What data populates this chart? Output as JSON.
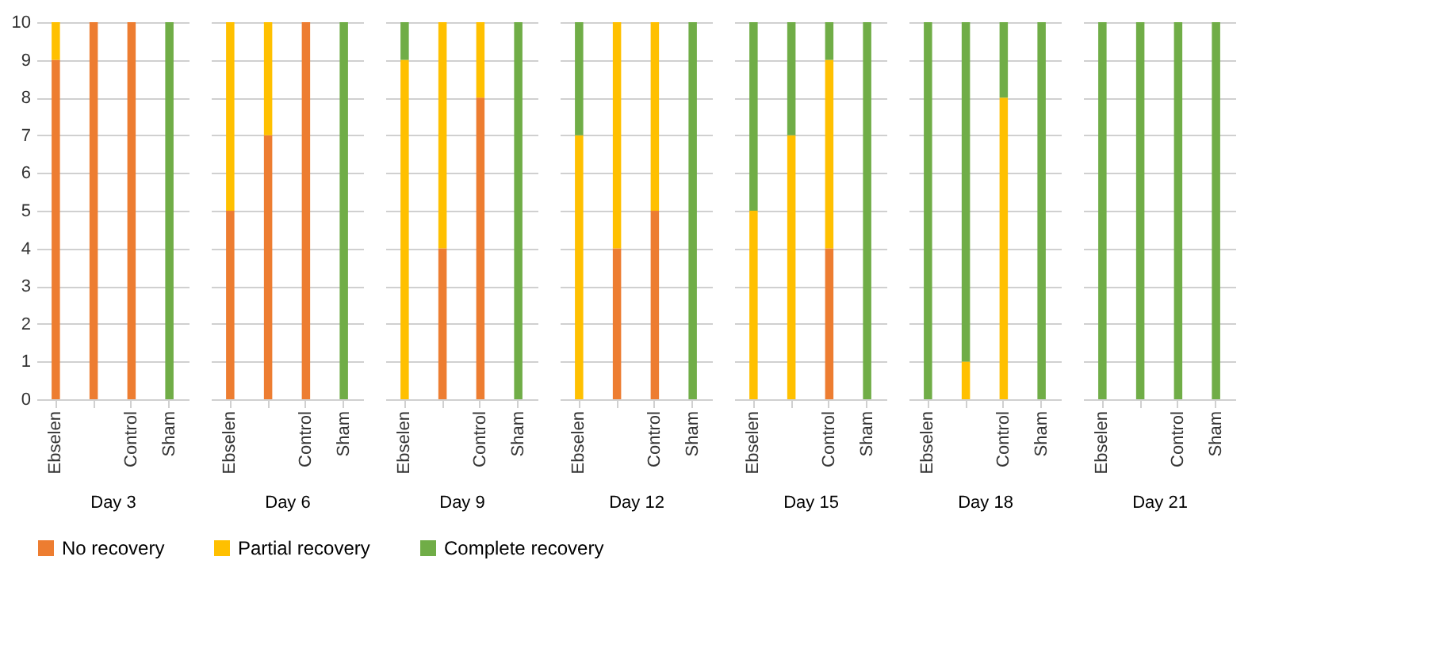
{
  "chart_data": [
    {
      "type": "bar",
      "stacked": true,
      "xlabel": "Day 3",
      "categories": [
        "Ebselen",
        null,
        "Control",
        "Sham"
      ],
      "ylim": [
        0,
        10
      ],
      "yticks": [
        0,
        1,
        2,
        3,
        4,
        5,
        6,
        7,
        8,
        9,
        10
      ],
      "grid": "y",
      "legend": "bottom",
      "series": [
        {
          "name": "No recovery",
          "color": "#ed7d31",
          "values": [
            9,
            10,
            10,
            0
          ]
        },
        {
          "name": "Partial recovery",
          "color": "#ffc000",
          "values": [
            1,
            0,
            0,
            0
          ]
        },
        {
          "name": "Complete recovery",
          "color": "#70ad47",
          "values": [
            0,
            0,
            0,
            10
          ]
        }
      ]
    },
    {
      "type": "bar",
      "stacked": true,
      "xlabel": "Day 6",
      "categories": [
        "Ebselen",
        null,
        "Control",
        "Sham"
      ],
      "ylim": [
        0,
        10
      ],
      "yticks": [
        0,
        1,
        2,
        3,
        4,
        5,
        6,
        7,
        8,
        9,
        10
      ],
      "grid": "y",
      "legend": "bottom",
      "tick_labels": "x",
      "series": [
        {
          "name": "No recovery",
          "color": "#ed7d31",
          "values": [
            5,
            7,
            10,
            0
          ]
        },
        {
          "name": "Partial recovery",
          "color": "#ffc000",
          "values": [
            5,
            3,
            0,
            0
          ]
        },
        {
          "name": "Complete recovery",
          "color": "#70ad47",
          "values": [
            0,
            0,
            0,
            10
          ]
        }
      ]
    },
    {
      "type": "bar",
      "stacked": true,
      "xlabel": "Day 9",
      "categories": [
        "Ebselen",
        null,
        "Control",
        "Sham"
      ],
      "ylim": [
        0,
        10
      ],
      "yticks": [
        0,
        1,
        2,
        3,
        4,
        5,
        6,
        7,
        8,
        9,
        10
      ],
      "grid": "y",
      "legend": "bottom",
      "tick_labels": "x",
      "series": [
        {
          "name": "No recovery",
          "color": "#ed7d31",
          "values": [
            0,
            4,
            8,
            0
          ]
        },
        {
          "name": "Partial recovery",
          "color": "#ffc000",
          "values": [
            9,
            6,
            2,
            0
          ]
        },
        {
          "name": "Complete recovery",
          "color": "#70ad47",
          "values": [
            1,
            0,
            0,
            10
          ]
        }
      ]
    },
    {
      "type": "bar",
      "stacked": true,
      "xlabel": "Day 12",
      "categories": [
        "Ebselen",
        null,
        "Control",
        "Sham"
      ],
      "ylim": [
        0,
        10
      ],
      "yticks": [
        0,
        1,
        2,
        3,
        4,
        5,
        6,
        7,
        8,
        9,
        10
      ],
      "grid": "y",
      "legend": "bottom",
      "tick_labels": "x",
      "series": [
        {
          "name": "No recovery",
          "color": "#ed7d31",
          "values": [
            0,
            4,
            5,
            0
          ]
        },
        {
          "name": "Partial recovery",
          "color": "#ffc000",
          "values": [
            7,
            6,
            5,
            0
          ]
        },
        {
          "name": "Complete recovery",
          "color": "#70ad47",
          "values": [
            3,
            0,
            0,
            10
          ]
        }
      ]
    },
    {
      "type": "bar",
      "stacked": true,
      "xlabel": "Day 15",
      "categories": [
        "Ebselen",
        null,
        "Control",
        "Sham"
      ],
      "ylim": [
        0,
        10
      ],
      "yticks": [
        0,
        1,
        2,
        3,
        4,
        5,
        6,
        7,
        8,
        9,
        10
      ],
      "grid": "y",
      "legend": "bottom",
      "tick_labels": "x",
      "series": [
        {
          "name": "No recovery",
          "color": "#ed7d31",
          "values": [
            0,
            0,
            4,
            0
          ]
        },
        {
          "name": "Partial recovery",
          "color": "#ffc000",
          "values": [
            5,
            7,
            5,
            0
          ]
        },
        {
          "name": "Complete recovery",
          "color": "#70ad47",
          "values": [
            5,
            3,
            1,
            10
          ]
        }
      ]
    },
    {
      "type": "bar",
      "stacked": true,
      "xlabel": "Day 18",
      "categories": [
        "Ebselen",
        null,
        "Control",
        "Sham"
      ],
      "ylim": [
        0,
        10
      ],
      "yticks": [
        0,
        1,
        2,
        3,
        4,
        5,
        6,
        7,
        8,
        9,
        10
      ],
      "grid": "y",
      "legend": "bottom",
      "tick_labels": "x",
      "series": [
        {
          "name": "No recovery",
          "color": "#ed7d31",
          "values": [
            0,
            0,
            0,
            0
          ]
        },
        {
          "name": "Partial recovery",
          "color": "#ffc000",
          "values": [
            0,
            1,
            8,
            0
          ]
        },
        {
          "name": "Complete recovery",
          "color": "#70ad47",
          "values": [
            10,
            9,
            2,
            10
          ]
        }
      ]
    },
    {
      "type": "bar",
      "stacked": true,
      "xlabel": "Day 21",
      "categories": [
        "Ebselen",
        null,
        "Control",
        "Sham"
      ],
      "ylim": [
        0,
        10
      ],
      "yticks": [
        0,
        1,
        2,
        3,
        4,
        5,
        6,
        7,
        8,
        9,
        10
      ],
      "grid": "y",
      "legend": "bottom",
      "tick_labels": "x",
      "series": [
        {
          "name": "No recovery",
          "color": "#ed7d31",
          "values": [
            0,
            0,
            0,
            0
          ]
        },
        {
          "name": "Partial recovery",
          "color": "#ffc000",
          "values": [
            0,
            0,
            0,
            0
          ]
        },
        {
          "name": "Complete recovery",
          "color": "#70ad47",
          "values": [
            10,
            10,
            10,
            10
          ]
        }
      ]
    }
  ]
}
